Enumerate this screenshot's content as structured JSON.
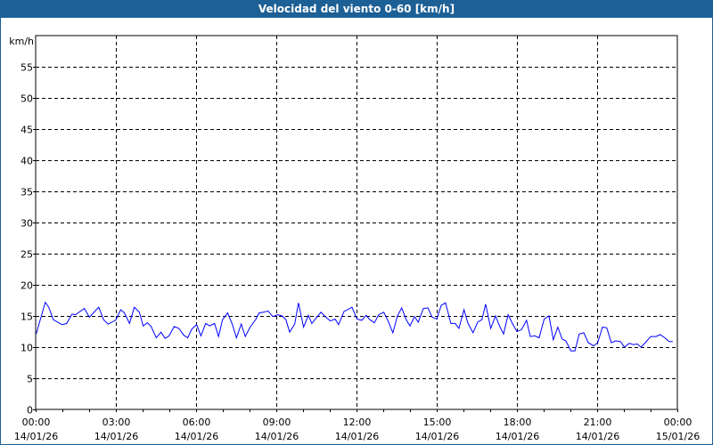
{
  "chart_data": {
    "type": "line",
    "title": "Velocidad del viento 0-60 [km/h]",
    "ylabel": "km/h",
    "xlabel": "",
    "ylim": [
      0,
      60
    ],
    "xlim_hours": [
      0,
      24
    ],
    "grid": true,
    "y_ticks": [
      0,
      5,
      10,
      15,
      20,
      25,
      30,
      35,
      40,
      45,
      50,
      55
    ],
    "x_ticks": [
      {
        "hour": 0,
        "time": "00:00",
        "date": "14/01/26"
      },
      {
        "hour": 3,
        "time": "03:00",
        "date": "14/01/26"
      },
      {
        "hour": 6,
        "time": "06:00",
        "date": "14/01/26"
      },
      {
        "hour": 9,
        "time": "09:00",
        "date": "14/01/26"
      },
      {
        "hour": 12,
        "time": "12:00",
        "date": "14/01/26"
      },
      {
        "hour": 15,
        "time": "15:00",
        "date": "14/01/26"
      },
      {
        "hour": 18,
        "time": "18:00",
        "date": "14/01/26"
      },
      {
        "hour": 21,
        "time": "21:00",
        "date": "14/01/26"
      },
      {
        "hour": 24,
        "time": "00:00",
        "date": "15/01/26"
      }
    ],
    "series": [
      {
        "name": "Velocidad del viento",
        "color": "#0000ff",
        "points": [
          [
            0.02,
            12.1
          ],
          [
            0.36,
            17.2
          ],
          [
            0.49,
            16.4
          ],
          [
            0.66,
            14.4
          ],
          [
            0.99,
            13.6
          ],
          [
            1.16,
            13.8
          ],
          [
            1.36,
            15.3
          ],
          [
            1.49,
            15.2
          ],
          [
            1.82,
            16.2
          ],
          [
            2.01,
            14.8
          ],
          [
            2.36,
            16.4
          ],
          [
            2.54,
            14.4
          ],
          [
            2.71,
            13.7
          ],
          [
            2.99,
            14.3
          ],
          [
            3.18,
            16.0
          ],
          [
            3.32,
            15.5
          ],
          [
            3.51,
            13.8
          ],
          [
            3.69,
            16.4
          ],
          [
            3.88,
            15.6
          ],
          [
            4.02,
            13.4
          ],
          [
            4.18,
            13.9
          ],
          [
            4.32,
            13.3
          ],
          [
            4.51,
            11.5
          ],
          [
            4.69,
            12.4
          ],
          [
            4.84,
            11.4
          ],
          [
            4.99,
            11.8
          ],
          [
            5.18,
            13.3
          ],
          [
            5.36,
            13.0
          ],
          [
            5.54,
            11.9
          ],
          [
            5.69,
            11.5
          ],
          [
            5.84,
            12.9
          ],
          [
            6.02,
            13.6
          ],
          [
            6.18,
            11.8
          ],
          [
            6.36,
            13.8
          ],
          [
            6.51,
            13.4
          ],
          [
            6.69,
            13.8
          ],
          [
            6.84,
            11.7
          ],
          [
            6.99,
            14.4
          ],
          [
            7.18,
            15.5
          ],
          [
            7.36,
            13.6
          ],
          [
            7.51,
            11.5
          ],
          [
            7.69,
            13.7
          ],
          [
            7.84,
            11.7
          ],
          [
            8.02,
            13.2
          ],
          [
            8.24,
            14.5
          ],
          [
            8.36,
            15.5
          ],
          [
            8.53,
            15.6
          ],
          [
            8.69,
            15.8
          ],
          [
            8.87,
            14.9
          ],
          [
            9.06,
            15.2
          ],
          [
            9.22,
            15.0
          ],
          [
            9.36,
            14.4
          ],
          [
            9.5,
            12.4
          ],
          [
            9.69,
            13.7
          ],
          [
            9.83,
            17.1
          ],
          [
            10.02,
            13.2
          ],
          [
            10.2,
            15.1
          ],
          [
            10.33,
            13.8
          ],
          [
            10.5,
            14.7
          ],
          [
            10.67,
            15.6
          ],
          [
            10.83,
            14.9
          ],
          [
            11.02,
            14.2
          ],
          [
            11.2,
            14.5
          ],
          [
            11.33,
            13.6
          ],
          [
            11.53,
            15.7
          ],
          [
            11.83,
            16.4
          ],
          [
            12.02,
            14.5
          ],
          [
            12.2,
            14.3
          ],
          [
            12.36,
            15.1
          ],
          [
            12.5,
            14.4
          ],
          [
            12.67,
            13.9
          ],
          [
            12.83,
            15.2
          ],
          [
            13.02,
            15.6
          ],
          [
            13.17,
            14.3
          ],
          [
            13.36,
            12.3
          ],
          [
            13.53,
            15.0
          ],
          [
            13.69,
            16.3
          ],
          [
            13.87,
            14.3
          ],
          [
            14.0,
            13.4
          ],
          [
            14.17,
            14.9
          ],
          [
            14.31,
            14.0
          ],
          [
            14.5,
            16.2
          ],
          [
            14.67,
            16.3
          ],
          [
            14.83,
            14.8
          ],
          [
            15.0,
            14.5
          ],
          [
            15.17,
            16.7
          ],
          [
            15.33,
            17.1
          ],
          [
            15.53,
            13.8
          ],
          [
            15.69,
            13.8
          ],
          [
            15.83,
            13.0
          ],
          [
            16.02,
            16.0
          ],
          [
            16.17,
            13.8
          ],
          [
            16.36,
            12.3
          ],
          [
            16.53,
            14.0
          ],
          [
            16.69,
            14.4
          ],
          [
            16.83,
            16.9
          ],
          [
            17.02,
            13.0
          ],
          [
            17.2,
            15.0
          ],
          [
            17.36,
            13.3
          ],
          [
            17.5,
            12.1
          ],
          [
            17.67,
            15.2
          ],
          [
            17.83,
            13.8
          ],
          [
            18.0,
            12.5
          ],
          [
            18.17,
            12.8
          ],
          [
            18.36,
            14.3
          ],
          [
            18.5,
            11.7
          ],
          [
            18.67,
            11.8
          ],
          [
            18.83,
            11.5
          ],
          [
            19.02,
            14.5
          ],
          [
            19.2,
            15.0
          ],
          [
            19.36,
            11.2
          ],
          [
            19.53,
            13.2
          ],
          [
            19.69,
            11.3
          ],
          [
            19.83,
            11.0
          ],
          [
            20.02,
            9.4
          ],
          [
            20.17,
            9.4
          ],
          [
            20.33,
            12.1
          ],
          [
            20.5,
            12.3
          ],
          [
            20.67,
            10.7
          ],
          [
            20.87,
            10.2
          ],
          [
            21.02,
            10.7
          ],
          [
            21.2,
            13.2
          ],
          [
            21.36,
            13.1
          ],
          [
            21.53,
            10.7
          ],
          [
            21.69,
            11.0
          ],
          [
            21.87,
            10.9
          ],
          [
            22.02,
            10.0
          ],
          [
            22.2,
            10.6
          ],
          [
            22.36,
            10.4
          ],
          [
            22.5,
            10.5
          ],
          [
            22.64,
            10.0
          ],
          [
            22.8,
            10.7
          ],
          [
            23.0,
            11.7
          ],
          [
            23.2,
            11.7
          ],
          [
            23.36,
            12.0
          ],
          [
            23.53,
            11.5
          ],
          [
            23.69,
            10.9
          ],
          [
            23.83,
            10.9
          ]
        ]
      }
    ]
  }
}
